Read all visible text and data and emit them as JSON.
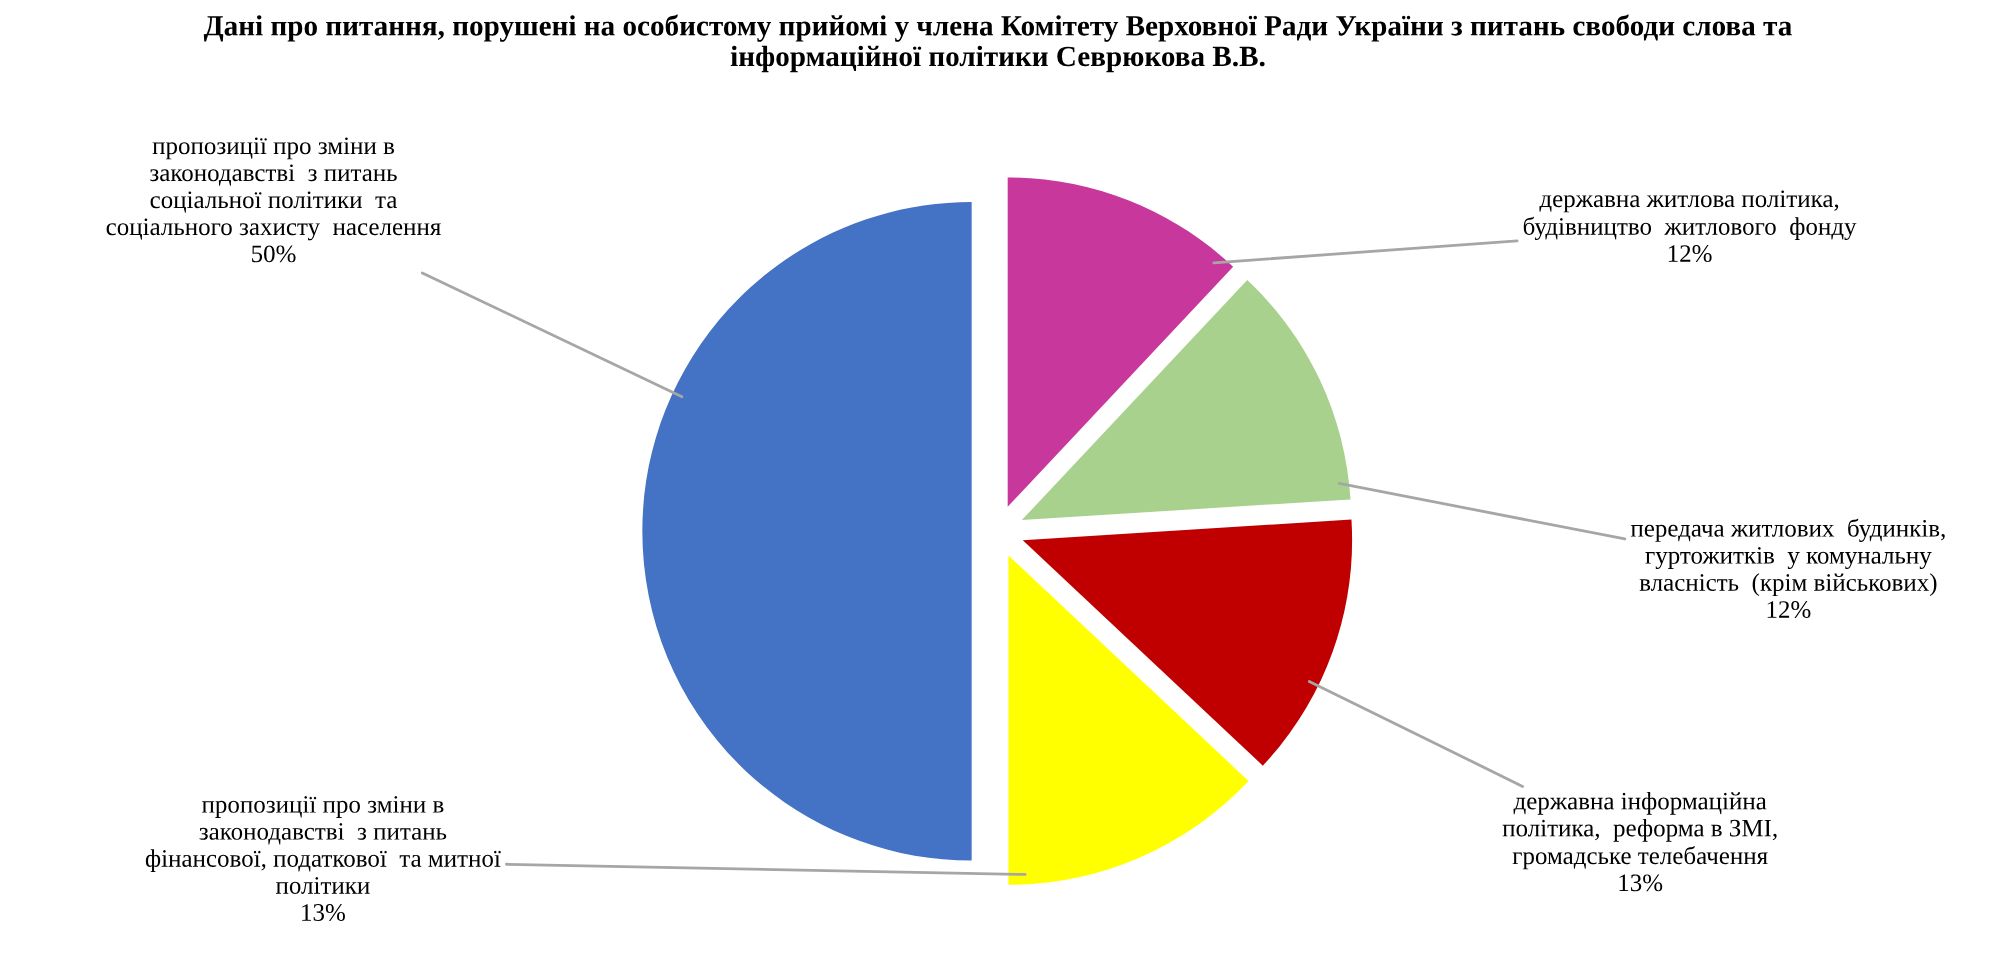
{
  "chart_data": {
    "type": "pie",
    "title": "Дані про питання, порушені на особистому прийомі у члена Комітету Верховної Ради України з питань свободи слова та\nінформаційної політики Севрюкова В.В.",
    "categories": [
      "державна житлова політика,\nбудівництво  житлового  фонду",
      "передача житлових  будинків,\nгуртожитків  у комунальну\nвласність  (крім військових)",
      "державна інформаційна\nполітика,  реформа в ЗМІ,\nгромадське телебачення",
      "пропозиції про зміни в\nзаконодавстві  з питань\nфінансової, податкової  та митної\nполітики",
      "пропозиції про зміни в\nзаконодавстві  з питань\nсоціальної політики  та\nсоціального захисту  населення"
    ],
    "values": [
      12,
      12,
      13,
      13,
      50
    ],
    "value_labels": [
      "12%",
      "12%",
      "13%",
      "13%",
      "50%"
    ],
    "colors": [
      "#c8379b",
      "#a9d18e",
      "#c00000",
      "#ffff00",
      "#4472c4"
    ]
  }
}
